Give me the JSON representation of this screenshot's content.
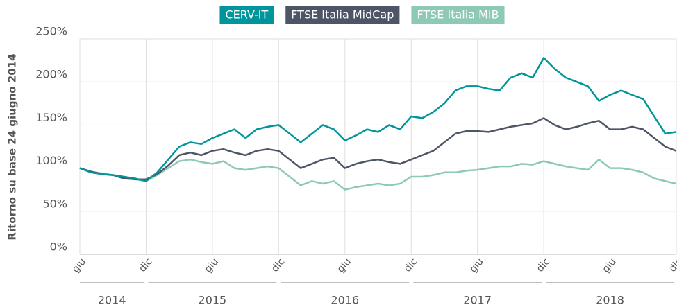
{
  "chart_data": {
    "type": "line",
    "ylabel": "Ritorno su base 24 giugno 2014",
    "x": [
      "2014-06",
      "2014-07",
      "2014-08",
      "2014-09",
      "2014-10",
      "2014-11",
      "2014-12",
      "2015-01",
      "2015-02",
      "2015-03",
      "2015-04",
      "2015-05",
      "2015-06",
      "2015-07",
      "2015-08",
      "2015-09",
      "2015-10",
      "2015-11",
      "2015-12",
      "2016-01",
      "2016-02",
      "2016-03",
      "2016-04",
      "2016-05",
      "2016-06",
      "2016-07",
      "2016-08",
      "2016-09",
      "2016-10",
      "2016-11",
      "2016-12",
      "2017-01",
      "2017-02",
      "2017-03",
      "2017-04",
      "2017-05",
      "2017-06",
      "2017-07",
      "2017-08",
      "2017-09",
      "2017-10",
      "2017-11",
      "2017-12",
      "2018-01",
      "2018-02",
      "2018-03",
      "2018-04",
      "2018-05",
      "2018-06",
      "2018-07",
      "2018-08",
      "2018-09",
      "2018-10",
      "2018-11",
      "2018-12"
    ],
    "series": [
      {
        "name": "CERV-IT",
        "color": "#00959a",
        "values": [
          100,
          95,
          93,
          92,
          90,
          88,
          85,
          95,
          110,
          125,
          130,
          128,
          135,
          140,
          145,
          135,
          145,
          148,
          150,
          140,
          130,
          140,
          150,
          145,
          132,
          138,
          145,
          142,
          150,
          145,
          160,
          158,
          165,
          175,
          190,
          195,
          195,
          192,
          190,
          205,
          210,
          205,
          228,
          215,
          205,
          200,
          195,
          178,
          185,
          190,
          185,
          180,
          160,
          140,
          142
        ]
      },
      {
        "name": "FTSE Italia MidCap",
        "color": "#4d5566",
        "values": [
          100,
          96,
          93,
          92,
          88,
          87,
          87,
          93,
          103,
          115,
          118,
          115,
          120,
          122,
          118,
          115,
          120,
          122,
          120,
          110,
          100,
          105,
          110,
          112,
          100,
          105,
          108,
          110,
          107,
          105,
          110,
          115,
          120,
          130,
          140,
          143,
          143,
          142,
          145,
          148,
          150,
          152,
          158,
          150,
          145,
          148,
          152,
          155,
          145,
          145,
          148,
          145,
          135,
          125,
          120
        ]
      },
      {
        "name": "FTSE Italia MIB",
        "color": "#8ec9b6",
        "values": [
          100,
          96,
          94,
          92,
          90,
          87,
          85,
          92,
          100,
          108,
          110,
          107,
          105,
          108,
          100,
          98,
          100,
          102,
          100,
          90,
          80,
          85,
          82,
          85,
          75,
          78,
          80,
          82,
          80,
          82,
          90,
          90,
          92,
          95,
          95,
          97,
          98,
          100,
          102,
          102,
          105,
          104,
          108,
          105,
          102,
          100,
          98,
          110,
          100,
          100,
          98,
          95,
          88,
          85,
          82
        ]
      }
    ],
    "xlim": [
      "2014-06",
      "2018-12"
    ],
    "xticks": [
      {
        "value": "2014-06",
        "label": "giu"
      },
      {
        "value": "2014-12",
        "label": "dic"
      },
      {
        "value": "2015-06",
        "label": "giu"
      },
      {
        "value": "2015-12",
        "label": "dic"
      },
      {
        "value": "2016-06",
        "label": "giu"
      },
      {
        "value": "2016-12",
        "label": "dic"
      },
      {
        "value": "2017-06",
        "label": "giu"
      },
      {
        "value": "2017-12",
        "label": "dic"
      },
      {
        "value": "2018-06",
        "label": "giu"
      },
      {
        "value": "2018-12",
        "label": "dic"
      }
    ],
    "x_groups": [
      {
        "label": "2014",
        "from": "2014-06",
        "to": "2014-12"
      },
      {
        "label": "2015",
        "from": "2014-12",
        "to": "2015-12"
      },
      {
        "label": "2016",
        "from": "2015-12",
        "to": "2016-12"
      },
      {
        "label": "2017",
        "from": "2016-12",
        "to": "2017-12"
      },
      {
        "label": "2018",
        "from": "2017-12",
        "to": "2018-12"
      }
    ],
    "ylim": [
      0,
      250
    ],
    "yticks": [
      {
        "value": 0,
        "label": "0%"
      },
      {
        "value": 50,
        "label": "50%"
      },
      {
        "value": 100,
        "label": "100%"
      },
      {
        "value": 150,
        "label": "150%"
      },
      {
        "value": 200,
        "label": "200%"
      },
      {
        "value": 250,
        "label": "250%"
      }
    ],
    "grid": true,
    "legend": "top"
  }
}
